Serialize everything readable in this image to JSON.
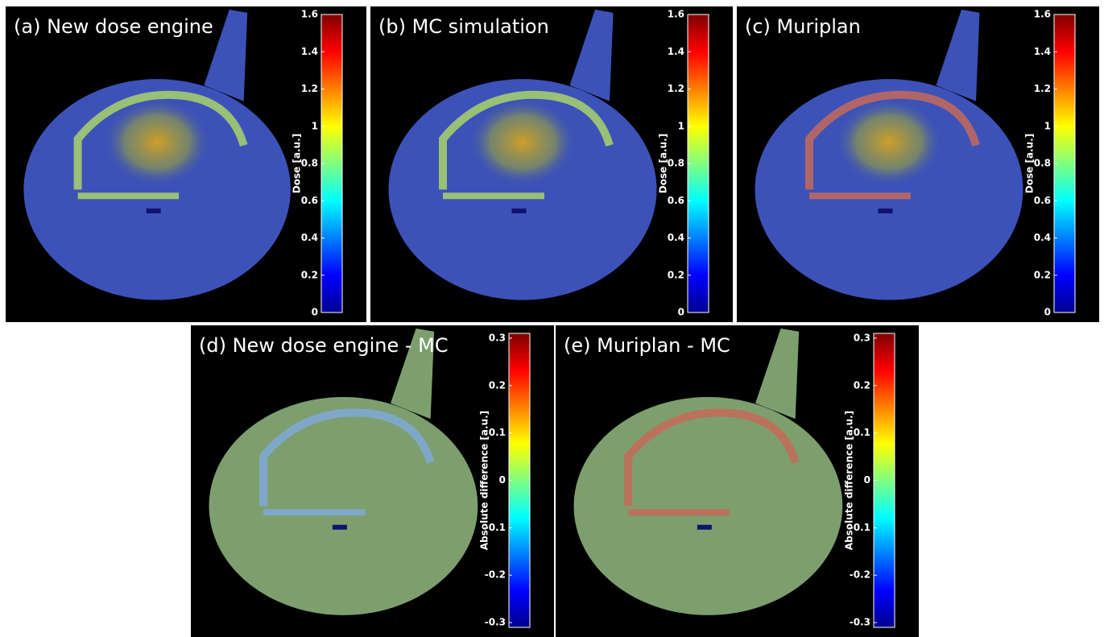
{
  "panels": [
    {
      "title": "(a) New dose engine",
      "colorbar_label": "Dose [a.u.]",
      "clim": [
        0,
        1.6
      ],
      "ticks": [
        0,
        0.2,
        0.4,
        0.6,
        0.8,
        1,
        1.2,
        1.4,
        1.6
      ]
    },
    {
      "title": "(b) MC simulation",
      "colorbar_label": "Dose [a.u.]",
      "clim": [
        0,
        1.6
      ],
      "ticks": [
        0,
        0.2,
        0.4,
        0.6,
        0.8,
        1,
        1.2,
        1.4,
        1.6
      ]
    },
    {
      "title": "(c) Muriplan",
      "colorbar_label": "Dose [a.u.]",
      "clim": [
        0,
        1.6
      ],
      "ticks": [
        0,
        0.2,
        0.4,
        0.6,
        0.8,
        1,
        1.2,
        1.4,
        1.6
      ]
    },
    {
      "title": "(d) New dose engine - MC",
      "colorbar_label": "Absolute difference [a.u.]",
      "clim": [
        -0.31,
        0.31
      ],
      "ticks": [
        -0.3,
        -0.2,
        -0.1,
        0,
        0.1,
        0.2,
        0.3
      ]
    },
    {
      "title": "(e) Muriplan - MC",
      "colorbar_label": "Absolute difference [a.u.]",
      "clim": [
        -0.31,
        0.31
      ],
      "ticks": [
        -0.3,
        -0.2,
        -0.1,
        0,
        0.1,
        0.2,
        0.3
      ]
    }
  ]
}
